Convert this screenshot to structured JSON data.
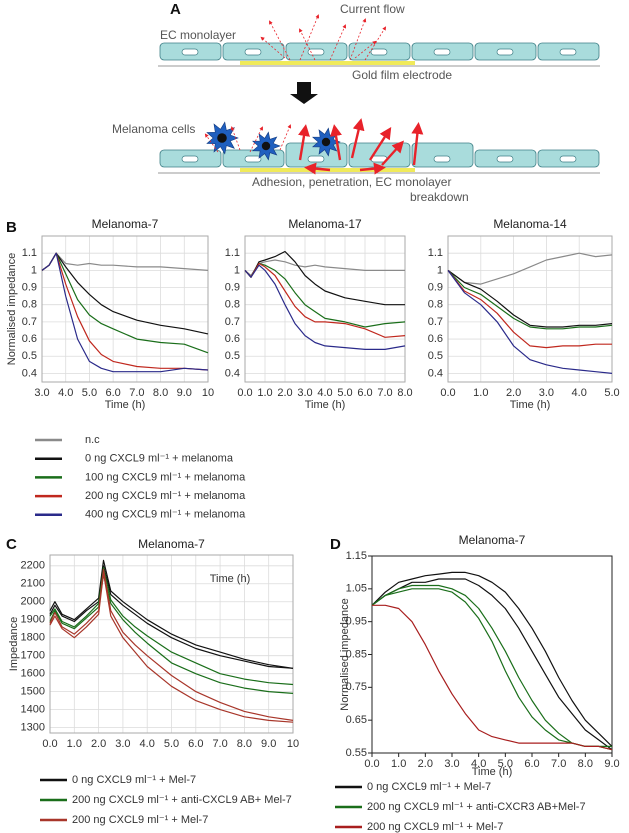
{
  "diagram": {
    "panel": "A",
    "texts": {
      "current_flow": "Current flow",
      "ec_monolayer": "EC monolayer",
      "gold_film_electrode": "Gold film electrode",
      "melanoma_cells": "Melanoma cells",
      "caption_line1": "Adhesion, penetration, EC monolayer",
      "caption_line2": "breakdown"
    }
  },
  "chart_data": [
    {
      "type": "line",
      "panel": "B",
      "title": "Melanoma-7",
      "xlabel": "Time (h)",
      "ylabel": "Normalised impedance",
      "grid": true,
      "x": [
        3,
        3.3,
        3.6,
        4,
        4.5,
        5,
        5.5,
        6,
        7,
        8,
        9,
        10
      ],
      "xlim": [
        3,
        10
      ],
      "xticks": [
        {
          "value": 3,
          "label": "3.0"
        },
        {
          "value": 4,
          "label": "4.0"
        },
        {
          "value": 5,
          "label": "5.0"
        },
        {
          "value": 6,
          "label": "6.0"
        },
        {
          "value": 7,
          "label": "7.0"
        },
        {
          "value": 8,
          "label": "8.0"
        },
        {
          "value": 9,
          "label": "9.0"
        },
        10
      ],
      "ylim": [
        0.35,
        1.2
      ],
      "yticks": [
        0.4,
        0.5,
        0.6,
        0.7,
        0.8,
        0.9,
        1,
        1.1
      ],
      "series": [
        {
          "name": "n.c",
          "color": "#8a8a8a",
          "values": [
            1.0,
            1.03,
            1.1,
            1.04,
            1.03,
            1.04,
            1.03,
            1.03,
            1.02,
            1.02,
            1.01,
            1.0
          ]
        },
        {
          "name": "0 ng CXCL9 ml⁻¹ + melanoma",
          "color": "#111111",
          "values": [
            1.0,
            1.03,
            1.1,
            1.02,
            0.93,
            0.86,
            0.8,
            0.76,
            0.71,
            0.68,
            0.66,
            0.63
          ]
        },
        {
          "name": "100 ng CXCL9 ml⁻¹ + melanoma",
          "color": "#1a6e1a",
          "values": [
            1.0,
            1.03,
            1.1,
            0.98,
            0.83,
            0.74,
            0.69,
            0.66,
            0.6,
            0.58,
            0.57,
            0.52
          ]
        },
        {
          "name": "200 ng CXCL9 ml⁻¹ + melanoma",
          "color": "#c0281e",
          "values": [
            1.0,
            1.03,
            1.1,
            0.92,
            0.73,
            0.59,
            0.51,
            0.47,
            0.44,
            0.43,
            0.43,
            0.42
          ]
        },
        {
          "name": "400 ng CXCL9 ml⁻¹ + melanoma",
          "color": "#2a2a8a",
          "values": [
            1.0,
            1.03,
            1.1,
            0.85,
            0.6,
            0.47,
            0.43,
            0.41,
            0.41,
            0.41,
            0.43,
            0.42
          ]
        }
      ]
    },
    {
      "type": "line",
      "title": "Melanoma-17",
      "xlabel": "Time (h)",
      "grid": true,
      "x": [
        0,
        0.3,
        0.7,
        1,
        1.5,
        2,
        2.5,
        3,
        3.5,
        4,
        5,
        6,
        7,
        8
      ],
      "xlim": [
        0,
        8
      ],
      "xticks": [
        {
          "value": 0,
          "label": "0.0"
        },
        {
          "value": 1,
          "label": "1.0"
        },
        {
          "value": 2,
          "label": "2.0"
        },
        {
          "value": 3,
          "label": "3.0"
        },
        {
          "value": 4,
          "label": "4.0"
        },
        {
          "value": 5,
          "label": "5.0"
        },
        {
          "value": 6,
          "label": "6.0"
        },
        {
          "value": 7,
          "label": "7.0"
        },
        {
          "value": 8,
          "label": "8.0"
        }
      ],
      "ylim": [
        0.35,
        1.2
      ],
      "yticks": [
        0.4,
        0.5,
        0.6,
        0.7,
        0.8,
        0.9,
        1,
        1.1
      ],
      "series": [
        {
          "color": "#8a8a8a",
          "values": [
            1,
            0.97,
            1.04,
            1.05,
            1.06,
            1.05,
            1.03,
            1.02,
            1.03,
            1.02,
            1.01,
            1.0,
            1.0,
            1.0
          ]
        },
        {
          "color": "#111111",
          "values": [
            1,
            0.96,
            1.05,
            1.06,
            1.08,
            1.11,
            1.05,
            0.97,
            0.92,
            0.88,
            0.84,
            0.82,
            0.8,
            0.8
          ]
        },
        {
          "color": "#1a6e1a",
          "values": [
            1,
            0.96,
            1.04,
            1.03,
            1.0,
            0.95,
            0.87,
            0.8,
            0.76,
            0.72,
            0.7,
            0.67,
            0.69,
            0.7
          ]
        },
        {
          "color": "#c0281e",
          "values": [
            1,
            0.96,
            1.04,
            1.02,
            0.97,
            0.88,
            0.79,
            0.73,
            0.7,
            0.7,
            0.69,
            0.66,
            0.61,
            0.62
          ]
        },
        {
          "color": "#2a2a8a",
          "values": [
            1,
            0.96,
            1.03,
            1.0,
            0.92,
            0.8,
            0.69,
            0.62,
            0.58,
            0.56,
            0.55,
            0.54,
            0.54,
            0.56
          ]
        }
      ]
    },
    {
      "type": "line",
      "title": "Melanoma-14",
      "xlabel": "Time (h)",
      "grid": true,
      "x": [
        0,
        0.5,
        1,
        1.5,
        2,
        2.5,
        3,
        3.5,
        4,
        4.5,
        5
      ],
      "xlim": [
        0,
        5
      ],
      "xticks": [
        {
          "value": 0,
          "label": "0.0"
        },
        {
          "value": 1,
          "label": "1.0"
        },
        {
          "value": 2,
          "label": "2.0"
        },
        {
          "value": 3,
          "label": "3.0"
        },
        {
          "value": 4,
          "label": "4.0"
        },
        {
          "value": 5,
          "label": "5.0"
        }
      ],
      "ylim": [
        0.35,
        1.2
      ],
      "yticks": [
        0.4,
        0.5,
        0.6,
        0.7,
        0.8,
        0.9,
        1,
        1.1
      ],
      "series": [
        {
          "color": "#8a8a8a",
          "values": [
            1.0,
            0.93,
            0.92,
            0.95,
            0.98,
            1.02,
            1.06,
            1.08,
            1.1,
            1.08,
            1.09
          ]
        },
        {
          "color": "#111111",
          "values": [
            1.0,
            0.93,
            0.89,
            0.82,
            0.74,
            0.68,
            0.67,
            0.67,
            0.68,
            0.68,
            0.69
          ]
        },
        {
          "color": "#1a6e1a",
          "values": [
            1.0,
            0.9,
            0.86,
            0.79,
            0.72,
            0.67,
            0.66,
            0.66,
            0.67,
            0.67,
            0.68
          ]
        },
        {
          "color": "#c0281e",
          "values": [
            1.0,
            0.88,
            0.83,
            0.75,
            0.64,
            0.56,
            0.55,
            0.56,
            0.56,
            0.57,
            0.57
          ]
        },
        {
          "color": "#2a2a8a",
          "values": [
            1.0,
            0.87,
            0.8,
            0.7,
            0.56,
            0.48,
            0.45,
            0.43,
            0.42,
            0.41,
            0.4
          ]
        }
      ]
    },
    {
      "type": "line",
      "panel": "C",
      "title": "Melanoma-7",
      "xlabel": "Time (h)",
      "ylabel": "Impedance",
      "grid": true,
      "x": [
        0,
        0.2,
        0.5,
        1,
        1.5,
        2,
        2.2,
        2.5,
        3,
        3.5,
        4,
        5,
        6,
        7,
        8,
        9,
        10
      ],
      "xlim": [
        0,
        10
      ],
      "xticks": [
        {
          "value": 0,
          "label": "0.0"
        },
        {
          "value": 1,
          "label": "1.0"
        },
        {
          "value": 2,
          "label": "2.0"
        },
        {
          "value": 3,
          "label": "3.0"
        },
        {
          "value": 4,
          "label": "4.0"
        },
        {
          "value": 5,
          "label": "5.0"
        },
        {
          "value": 6,
          "label": "6.0"
        },
        {
          "value": 7,
          "label": "7.0"
        },
        {
          "value": 8,
          "label": "8.0"
        },
        {
          "value": 9,
          "label": "9.0"
        },
        10
      ],
      "ylim": [
        1270,
        2260
      ],
      "yticks": [
        1300,
        1400,
        1500,
        1600,
        1700,
        1800,
        1900,
        2000,
        2100,
        2200
      ],
      "series": [
        {
          "name": "0 ng CXCL9 ml⁻¹ + Mel-7",
          "color": "#111111",
          "replicates": [
            [
              1950,
              2000,
              1930,
              1900,
              1960,
              2020,
              2230,
              2060,
              2000,
              1950,
              1900,
              1820,
              1760,
              1720,
              1680,
              1650,
              1630
            ],
            [
              1930,
              1980,
              1920,
              1890,
              1950,
              2000,
              2200,
              2040,
              1980,
              1930,
              1880,
              1800,
              1740,
              1700,
              1670,
              1640,
              1630
            ]
          ]
        },
        {
          "name": "200 ng CXCL9 ml⁻¹ + anti-CXCL9 AB+ Mel-7",
          "color": "#1a6e1a",
          "replicates": [
            [
              1920,
              1960,
              1890,
              1860,
              1920,
              1990,
              2190,
              2010,
              1920,
              1860,
              1810,
              1720,
              1660,
              1600,
              1570,
              1550,
              1540
            ],
            [
              1890,
              1950,
              1880,
              1850,
              1910,
              1970,
              2150,
              1990,
              1900,
              1830,
              1770,
              1660,
              1600,
              1550,
              1520,
              1500,
              1490
            ]
          ]
        },
        {
          "name": "200 ng CXCL9 ml⁻¹ + Mel-7",
          "color": "#a8362a",
          "replicates": [
            [
              1880,
              1940,
              1860,
              1820,
              1880,
              1950,
              2180,
              1950,
              1830,
              1760,
              1700,
              1590,
              1500,
              1440,
              1390,
              1360,
              1340
            ],
            [
              1870,
              1920,
              1850,
              1800,
              1860,
              1930,
              2160,
              1920,
              1800,
              1720,
              1640,
              1530,
              1450,
              1400,
              1360,
              1340,
              1330
            ]
          ]
        }
      ]
    },
    {
      "type": "line",
      "panel": "D",
      "title": "Melanoma-7",
      "xlabel": "Time (h)",
      "ylabel": "Normalised impedance",
      "grid": false,
      "x": [
        0,
        0.5,
        1,
        1.5,
        2,
        2.5,
        3,
        3.5,
        4,
        4.5,
        5,
        5.5,
        6,
        6.5,
        7,
        7.5,
        8,
        8.5,
        9
      ],
      "xlim": [
        0,
        9
      ],
      "xticks": [
        {
          "value": 0,
          "label": "0.0"
        },
        {
          "value": 1,
          "label": "1.0"
        },
        {
          "value": 2,
          "label": "2.0"
        },
        {
          "value": 3,
          "label": "3.0"
        },
        {
          "value": 4,
          "label": "4.0"
        },
        {
          "value": 5,
          "label": "5.0"
        },
        {
          "value": 6,
          "label": "6.0"
        },
        {
          "value": 7,
          "label": "7.0"
        },
        {
          "value": 8,
          "label": "8.0"
        },
        {
          "value": 9,
          "label": "9.0"
        }
      ],
      "ylim": [
        0.55,
        1.15
      ],
      "yticks": [
        0.55,
        0.65,
        0.75,
        0.85,
        0.95,
        1.05,
        1.15
      ],
      "series": [
        {
          "name": "0 ng CXCL9 ml⁻¹ + Mel-7",
          "color": "#111111",
          "replicates": [
            [
              1.0,
              1.04,
              1.07,
              1.08,
              1.09,
              1.095,
              1.1,
              1.1,
              1.09,
              1.07,
              1.04,
              0.99,
              0.93,
              0.86,
              0.78,
              0.71,
              0.65,
              0.61,
              0.57
            ],
            [
              1.0,
              1.03,
              1.05,
              1.07,
              1.07,
              1.08,
              1.08,
              1.08,
              1.06,
              1.03,
              0.99,
              0.93,
              0.86,
              0.79,
              0.72,
              0.67,
              0.62,
              0.59,
              0.56
            ]
          ]
        },
        {
          "name": "200 ng CXCL9 ml⁻¹ + anti-CXCR3 AB+Mel-7",
          "color": "#1a6e1a",
          "replicates": [
            [
              1.0,
              1.03,
              1.05,
              1.06,
              1.06,
              1.06,
              1.05,
              1.03,
              0.99,
              0.93,
              0.86,
              0.78,
              0.71,
              0.65,
              0.61,
              0.58,
              0.57,
              0.57,
              0.56
            ],
            [
              1.0,
              1.03,
              1.04,
              1.05,
              1.05,
              1.05,
              1.04,
              1.01,
              0.96,
              0.89,
              0.8,
              0.72,
              0.66,
              0.62,
              0.59,
              0.58,
              0.57,
              0.57,
              0.57
            ]
          ]
        },
        {
          "name": "200 ng CXCL9 ml⁻¹ + Mel-7",
          "color": "#a81e1e",
          "replicates": [
            [
              1.0,
              1.0,
              0.99,
              0.95,
              0.88,
              0.8,
              0.73,
              0.67,
              0.62,
              0.6,
              0.59,
              0.58,
              0.58,
              0.58,
              0.58,
              0.58,
              0.57,
              0.57,
              0.56
            ]
          ]
        }
      ]
    }
  ]
}
